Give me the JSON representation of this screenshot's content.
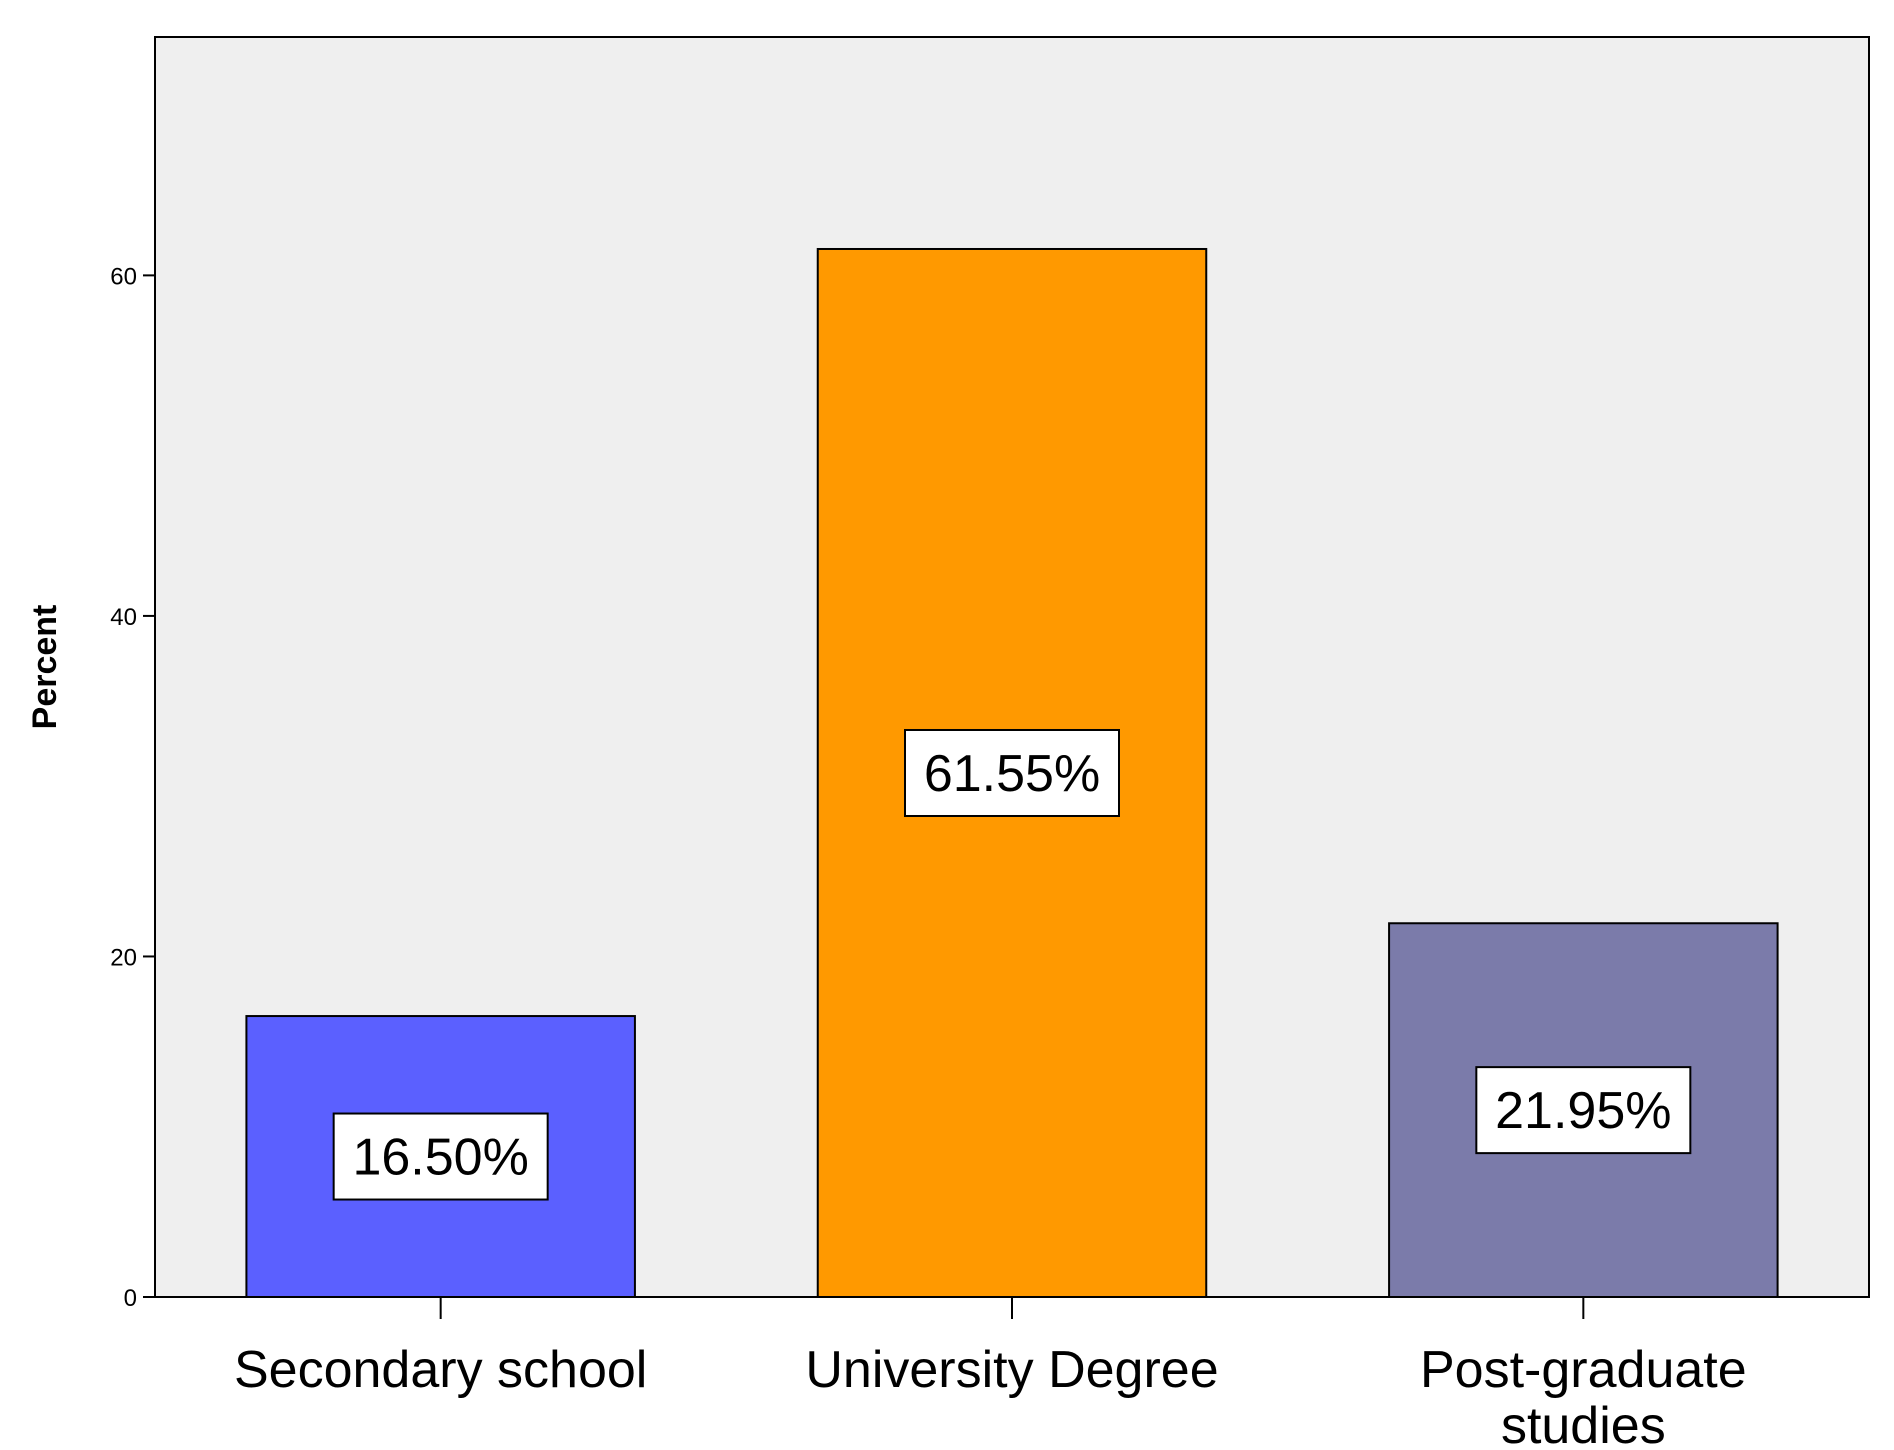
{
  "chart_data": {
    "type": "bar",
    "categories": [
      "Secondary school",
      "University Degree",
      "Post-graduate studies"
    ],
    "category_lines": [
      [
        "Secondary school"
      ],
      [
        "University Degree"
      ],
      [
        "Post-graduate",
        "studies"
      ]
    ],
    "values": [
      16.5,
      61.55,
      21.95
    ],
    "data_labels": [
      "16.50%",
      "61.55%",
      "21.95%"
    ],
    "bar_colors": [
      "#5b60ff",
      "#ff9900",
      "#7b7baa"
    ],
    "title": "",
    "xlabel": "",
    "ylabel": "Percent",
    "ylim": [
      0,
      74
    ],
    "yticks": [
      0,
      20,
      40,
      60
    ],
    "grid": false,
    "legend": "none",
    "plot_background": "#efefef"
  }
}
